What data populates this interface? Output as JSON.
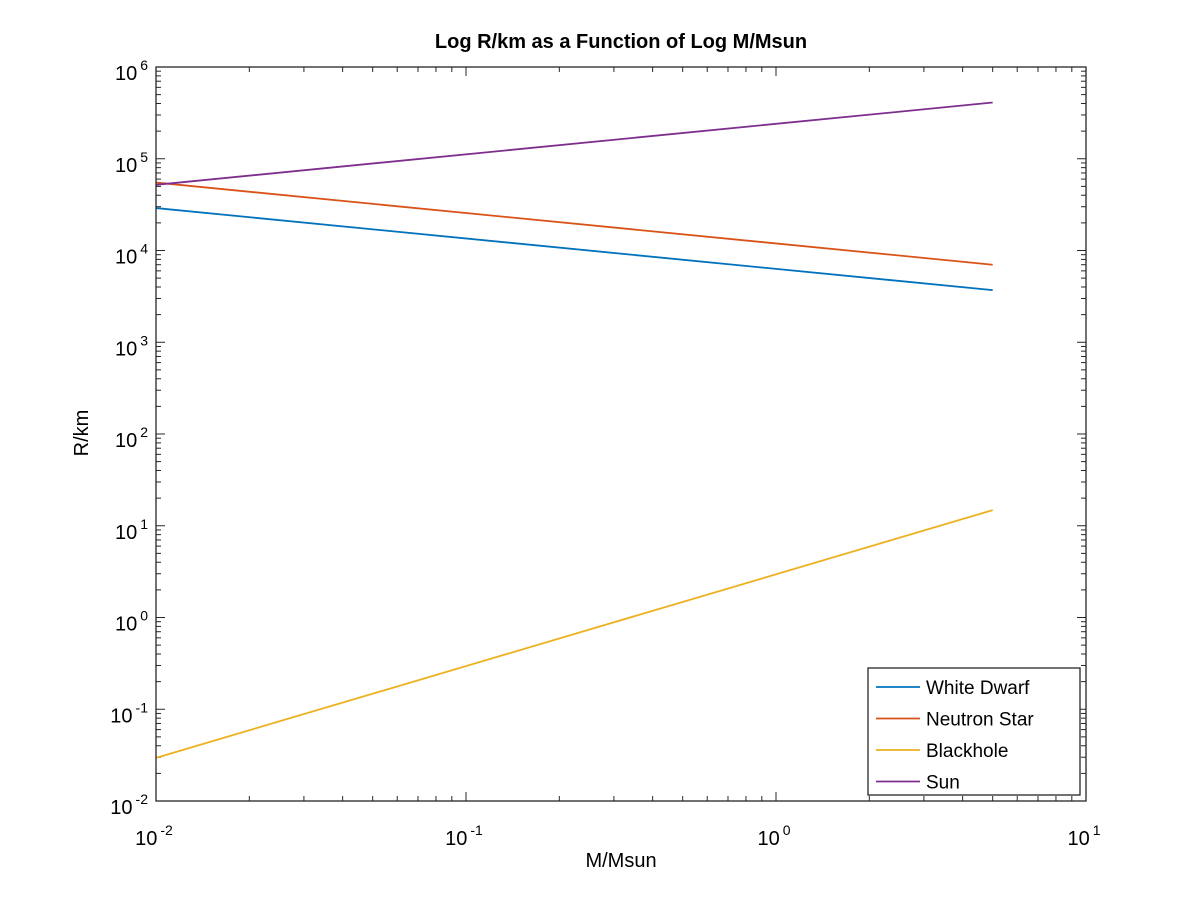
{
  "chart_data": {
    "type": "line",
    "title": "Log R/km as a Function of Log M/Msun",
    "xlabel": "M/Msun",
    "ylabel": "R/km",
    "xscale": "log",
    "yscale": "log",
    "xlim": [
      0.01,
      10
    ],
    "ylim": [
      0.01,
      1000000
    ],
    "grid": false,
    "legend_location": "bottom-right",
    "x_ticks": [
      {
        "value": 0.01,
        "base": "10",
        "exp": "-2"
      },
      {
        "value": 0.1,
        "base": "10",
        "exp": "-1"
      },
      {
        "value": 1,
        "base": "10",
        "exp": "0"
      },
      {
        "value": 10,
        "base": "10",
        "exp": "1"
      }
    ],
    "y_ticks": [
      {
        "value": 0.01,
        "base": "10",
        "exp": "-2"
      },
      {
        "value": 0.1,
        "base": "10",
        "exp": "-1"
      },
      {
        "value": 1,
        "base": "10",
        "exp": "0"
      },
      {
        "value": 10,
        "base": "10",
        "exp": "1"
      },
      {
        "value": 100,
        "base": "10",
        "exp": "2"
      },
      {
        "value": 1000,
        "base": "10",
        "exp": "3"
      },
      {
        "value": 10000,
        "base": "10",
        "exp": "4"
      },
      {
        "value": 100000,
        "base": "10",
        "exp": "5"
      },
      {
        "value": 1000000,
        "base": "10",
        "exp": "6"
      }
    ],
    "series": [
      {
        "name": "White Dwarf",
        "color": "#0072BD",
        "x": [
          0.01,
          5
        ],
        "y": [
          29000,
          3700
        ]
      },
      {
        "name": "Neutron Star",
        "color": "#D95319",
        "x": [
          0.01,
          5
        ],
        "y": [
          55000,
          7000
        ]
      },
      {
        "name": "Blackhole",
        "color": "#EDB120",
        "x": [
          0.01,
          5
        ],
        "y": [
          0.0295,
          14.8
        ]
      },
      {
        "name": "Sun",
        "color": "#7E2F8E",
        "x": [
          0.01,
          5
        ],
        "y": [
          52000,
          410000
        ]
      }
    ]
  }
}
